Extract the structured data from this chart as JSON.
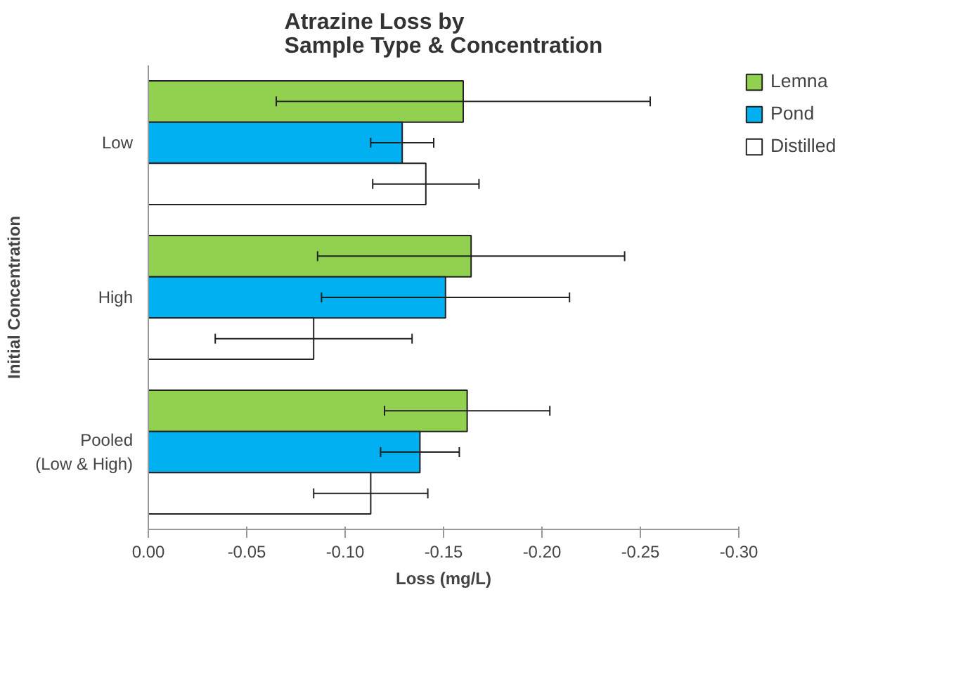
{
  "chart_data": {
    "type": "bar",
    "orientation": "horizontal",
    "title": "Atrazine Loss by\nSample Type & Concentration",
    "xlabel": "Loss (mg/L)",
    "ylabel": "Initial Concentration",
    "categories": [
      "Low",
      "High",
      "Pooled\n(Low & High)"
    ],
    "series": [
      {
        "name": "Lemna",
        "color": "#92d050",
        "values": [
          -0.16,
          -0.164,
          -0.162
        ],
        "errors": [
          0.095,
          0.078,
          0.042
        ]
      },
      {
        "name": "Pond",
        "color": "#00b0f0",
        "values": [
          -0.129,
          -0.151,
          -0.138
        ],
        "errors": [
          0.016,
          0.063,
          0.02
        ]
      },
      {
        "name": "Distilled",
        "color": "#ffffff",
        "values": [
          -0.141,
          -0.084,
          -0.113
        ],
        "errors": [
          0.027,
          0.05,
          0.029
        ]
      }
    ],
    "xlim": [
      0,
      -0.3
    ],
    "xticks": [
      {
        "value": 0,
        "label": "0.00"
      },
      {
        "value": -0.05,
        "label": "-0.05"
      },
      {
        "value": -0.1,
        "label": "-0.10"
      },
      {
        "value": -0.15,
        "label": "-0.15"
      },
      {
        "value": -0.2,
        "label": "-0.20"
      },
      {
        "value": -0.25,
        "label": "-0.25"
      },
      {
        "value": -0.3,
        "label": "-0.30"
      }
    ],
    "legend": "top right",
    "grid": false
  }
}
